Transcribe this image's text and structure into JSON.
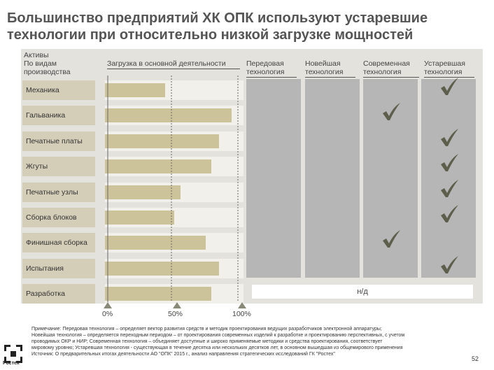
{
  "title": "Большинство предприятий ХК ОПК используют устаревшие технологии при относительно низкой загрузке мощностей",
  "headers": {
    "assets": "Активы",
    "assets_sub": "По видам производства",
    "load": "Загрузка в основной деятельности",
    "advanced": "Передовая технология",
    "newest": "Новейшая технология",
    "modern": "Современная технология",
    "outdated": "Устаревшая технология"
  },
  "chart_data": {
    "type": "bar",
    "title": "Загрузка в основной деятельности",
    "categories": [
      "Механика",
      "Гальваника",
      "Печатные платы",
      "Жгуты",
      "Печатные узлы",
      "Сборка блоков",
      "Финишная сборка",
      "Испытания",
      "Разработка"
    ],
    "values": [
      45,
      95,
      86,
      80,
      57,
      52,
      76,
      86,
      80
    ],
    "unit": "%",
    "xlim": [
      0,
      100
    ],
    "ticks": [
      "0%",
      "50%",
      "100%"
    ],
    "technology_columns": [
      "Передовая технология",
      "Новейшая технология",
      "Современная технология",
      "Устаревшая технология"
    ],
    "technology": [
      "Устаревшая",
      "Современная",
      "Устаревшая",
      "Устаревшая",
      "Устаревшая",
      "Устаревшая",
      "Современная",
      "Устаревшая",
      "н/д"
    ]
  },
  "na_label": "н/д",
  "footnote": {
    "line1": "Примечание: Передовая технология – определяет вектор развития средств и методик проектирования ведущих разработчиков электронной аппаратуры;",
    "line2": "Новейшая технология – определяется переходным периодом – от проектирования современных изделий к разработке и проектированию перспективных, с учетом",
    "line3": "проводимых ОКР и НИР; Современная технология – объединяет доступные и широко применяемые методики и средства проектирования, соответствует",
    "line4": "мировому уровню; Устаревшая технология - существующая в течение десятка или нескольких десятков лет, в основном вышедшая из общемирового применения",
    "source": "Источник: О предварительных итогах деятельности АО \"ОПК\" 2015 г., анализ направления стратегических исследований ГК \"Ростех\""
  },
  "page_number": "52",
  "logo_text": "Ростех",
  "colors": {
    "bar": "#cdc39b",
    "label_bg": "#d4ceb8",
    "panel": "#e4e2dd",
    "tech_col": "#b6b6b6",
    "check": "#5e5e4c"
  }
}
